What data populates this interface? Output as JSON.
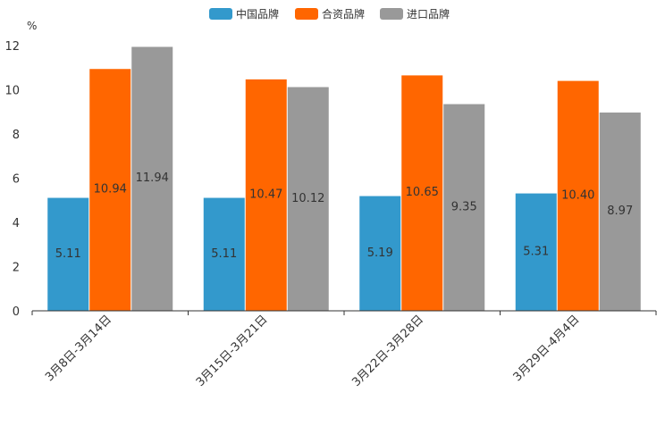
{
  "chart_data": {
    "type": "bar",
    "title": "",
    "unit_label": "%",
    "xlabel": "",
    "ylabel": "%",
    "ylim": [
      0,
      12
    ],
    "yticks": [
      0,
      2,
      4,
      6,
      8,
      10,
      12
    ],
    "legend_position": "top-center",
    "categories": [
      "3月8日-3月14日",
      "3月15日-3月21日",
      "3月22日-3月28日",
      "3月29日-4月4日"
    ],
    "series": [
      {
        "name": "中国品牌",
        "color": "#3399cc",
        "values": [
          5.11,
          5.11,
          5.19,
          5.31
        ],
        "labels": [
          "5.11",
          "5.11",
          "5.19",
          "5.31"
        ]
      },
      {
        "name": "合资品牌",
        "color": "#ff6600",
        "values": [
          10.94,
          10.47,
          10.65,
          10.4
        ],
        "labels": [
          "10.94",
          "10.47",
          "10.65",
          "10.40"
        ]
      },
      {
        "name": "进口品牌",
        "color": "#999999",
        "values": [
          11.94,
          10.12,
          9.35,
          8.97
        ],
        "labels": [
          "11.94",
          "10.12",
          "9.35",
          "8.97"
        ]
      }
    ]
  }
}
